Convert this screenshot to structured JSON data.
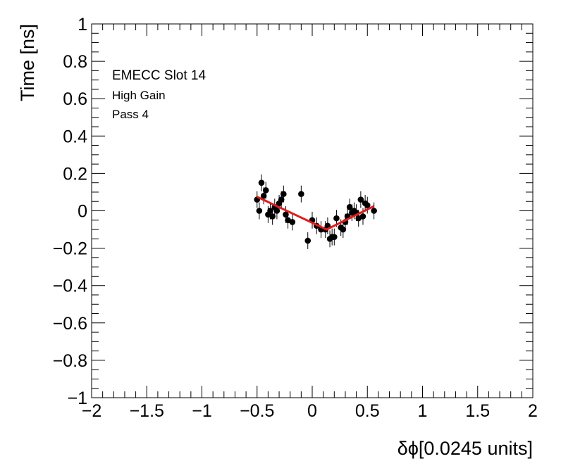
{
  "chart_data": {
    "type": "scatter",
    "xlabel": "δϕ[0.0245 units]",
    "ylabel": "Time [ns]",
    "xlim": [
      -2,
      2
    ],
    "ylim": [
      -1,
      1
    ],
    "xticks": [
      "−2",
      "−1.5",
      "−1",
      "−0.5",
      "0",
      "0.5",
      "1",
      "1.5",
      "2"
    ],
    "yticks": [
      "−1",
      "−0.8",
      "−0.6",
      "−0.4",
      "−0.2",
      "0",
      "0.2",
      "0.4",
      "0.6",
      "0.8",
      "1"
    ],
    "grid": false,
    "annotations": [
      "EMECC Slot 14",
      "High Gain",
      "Pass 4"
    ],
    "colors": {
      "markers": "#000000",
      "fit": "#e41a1c"
    },
    "series": [
      {
        "type": "scatter-errorbars",
        "x": [
          -0.5,
          -0.48,
          -0.46,
          -0.44,
          -0.42,
          -0.4,
          -0.38,
          -0.36,
          -0.34,
          -0.32,
          -0.3,
          -0.28,
          -0.26,
          -0.24,
          -0.22,
          -0.18,
          -0.1,
          -0.04,
          0.0,
          0.04,
          0.08,
          0.12,
          0.14,
          0.16,
          0.18,
          0.2,
          0.22,
          0.26,
          0.28,
          0.3,
          0.32,
          0.34,
          0.36,
          0.38,
          0.4,
          0.42,
          0.44,
          0.46,
          0.48,
          0.5,
          0.56
        ],
        "y": [
          0.06,
          0.0,
          0.15,
          0.08,
          0.11,
          -0.02,
          0.0,
          -0.03,
          0.02,
          0.0,
          0.04,
          0.06,
          0.09,
          -0.02,
          -0.05,
          -0.06,
          0.09,
          -0.16,
          -0.05,
          -0.08,
          -0.1,
          -0.1,
          -0.08,
          -0.15,
          -0.14,
          -0.14,
          -0.04,
          -0.09,
          -0.1,
          -0.06,
          -0.03,
          0.02,
          -0.01,
          0.0,
          -0.01,
          -0.04,
          0.06,
          -0.03,
          0.04,
          0.03,
          0.0
        ],
        "yerr": 0.045
      },
      {
        "type": "fit-line",
        "x": [
          -0.5,
          0.13,
          0.56
        ],
        "y": [
          0.075,
          -0.1,
          0.025
        ]
      }
    ]
  }
}
